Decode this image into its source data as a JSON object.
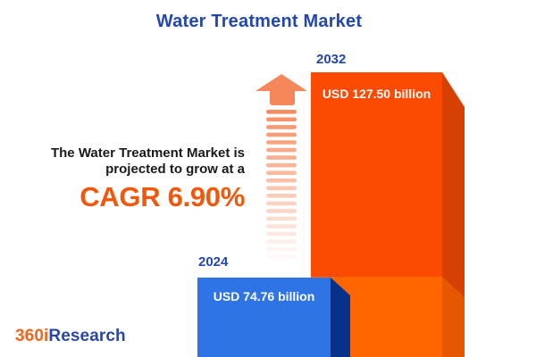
{
  "title": "Water Treatment Market",
  "projection": {
    "line1": "The Water Treatment Market is",
    "line2": "projected to grow at a",
    "cagr": "CAGR 6.90%"
  },
  "bars": [
    {
      "year": "2024",
      "value_label": "USD 74.76 billion"
    },
    {
      "year": "2032",
      "value_label": "USD 127.50 billion"
    }
  ],
  "logo": {
    "prefix": "360i",
    "suffix": "Research"
  },
  "chart_data": {
    "type": "bar",
    "title": "Water Treatment Market",
    "categories": [
      "2024",
      "2032"
    ],
    "values": [
      74.76,
      127.5
    ],
    "unit": "USD billion",
    "value_labels": [
      "USD 74.76 billion",
      "USD 127.50 billion"
    ],
    "cagr_percent": 6.9,
    "annotations": [
      "The Water Treatment Market is projected to grow at a CAGR 6.90%"
    ],
    "bar_colors": [
      "#2E74E4",
      "#FB4A02"
    ],
    "orientation": "vertical",
    "axes_visible": false,
    "legend": false,
    "style": "3d-infographic"
  },
  "colors": {
    "background": "#FFFFFF",
    "title_blue": "#2347AC",
    "text_dark": "#1A1A1A",
    "cagr_orange": "#F2570B",
    "bar_2024_front": "#2E74E4",
    "bar_2024_side": "#08328A",
    "bar_2032_front": "#FB4A02",
    "bar_2032_side": "#D64103",
    "bar_2032_base_front": "#FF6600",
    "bar_2032_base_side": "#E55800",
    "arrow_salmon": "#F6875A",
    "value_label_white": "#FFFFFF",
    "logo_orange": "#F2661B",
    "logo_blue": "#2B46A5"
  }
}
